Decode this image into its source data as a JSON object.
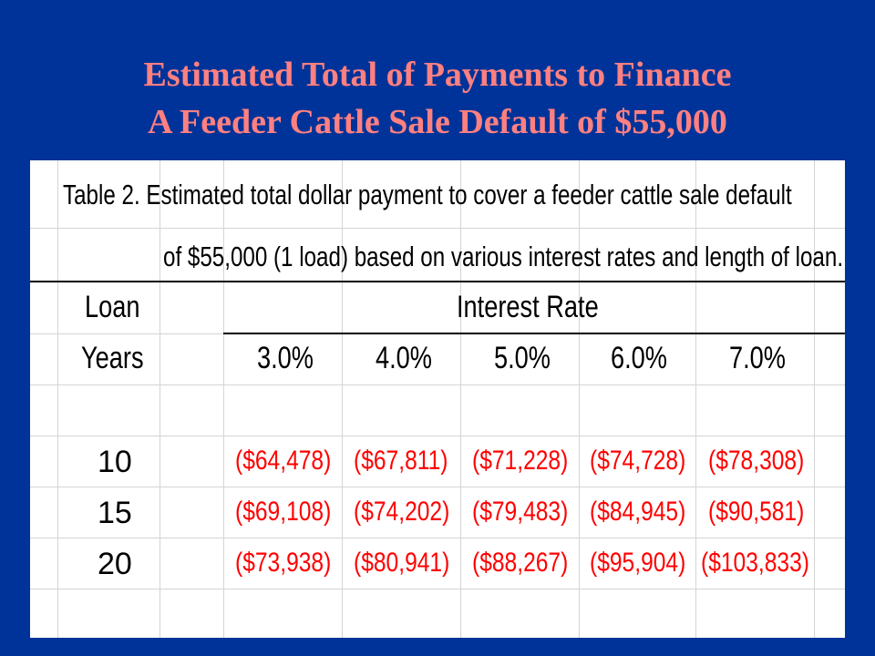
{
  "slide": {
    "title_line1": "Estimated Total of Payments to Finance",
    "title_line2": "A Feeder Cattle Sale Default of $55,000"
  },
  "table": {
    "caption_line1": "Table 2.  Estimated total dollar payment to cover a feeder cattle sale default",
    "caption_line2": "of $55,000 (1 load) based on various interest rates and length of loan.",
    "header_loan": "Loan",
    "header_interest_rate": "Interest Rate",
    "header_years": "Years",
    "rates": [
      "3.0%",
      "4.0%",
      "5.0%",
      "6.0%",
      "7.0%"
    ],
    "rows": [
      {
        "years": "10",
        "values": [
          "($64,478)",
          "($67,811)",
          "($71,228)",
          "($74,728)",
          "($78,308)"
        ]
      },
      {
        "years": "15",
        "values": [
          "($69,108)",
          "($74,202)",
          "($79,483)",
          "($84,945)",
          "($90,581)"
        ]
      },
      {
        "years": "20",
        "values": [
          "($73,938)",
          "($80,941)",
          "($88,267)",
          "($95,904)",
          "($103,833)"
        ]
      }
    ],
    "colors": {
      "negative_value": "#ff0000",
      "title": "#ff8080",
      "background": "#003399"
    }
  }
}
